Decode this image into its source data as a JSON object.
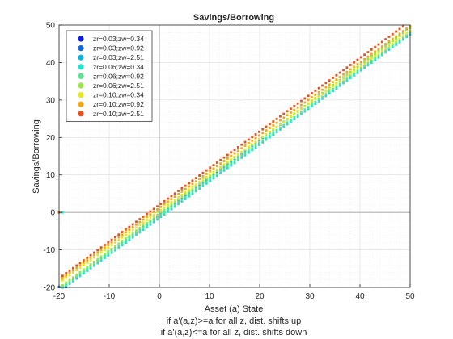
{
  "chart_data": {
    "type": "scatter",
    "title": "Savings/Borrowing",
    "xlabel": "Asset (a) State",
    "ylabel": "Savings/Borrowing",
    "notes": [
      "if a'(a,z)>=a for all z, dist. shifts up",
      "if a'(a,z)<=a for all z, dist. shifts down"
    ],
    "xlim": [
      -20,
      50
    ],
    "ylim": [
      -20,
      50
    ],
    "xticks": [
      "-20",
      "-10",
      "0",
      "10",
      "20",
      "30",
      "40",
      "50"
    ],
    "yticks": [
      "-20",
      "-10",
      "0",
      "10",
      "20",
      "30",
      "40",
      "50"
    ],
    "grid": true,
    "minor_grid": true,
    "reference_lines": {
      "x": 0,
      "y": 0
    },
    "legend_position": "top-left",
    "series": [
      {
        "name": "zr=0.03;zw=0.34",
        "color": "#0a1ee6",
        "x_start": -20,
        "x_end": -18.3,
        "x_pivot": -18.3,
        "slope": 1.0,
        "offset": -1.2,
        "y_floor": -19.9
      },
      {
        "name": "zr=0.03;zw=0.92",
        "color": "#0a64e6",
        "x_start": -20,
        "x_end": -18.9,
        "x_pivot": -18.9,
        "slope": 1.0,
        "offset": -1.0,
        "y_floor": -19.9
      },
      {
        "name": "zr=0.03;zw=2.51",
        "color": "#0ab4e6",
        "x_start": -20,
        "x_end": 50,
        "x_pivot": -19.5,
        "slope": 1.0,
        "offset": -0.7,
        "y_floor": 0
      },
      {
        "name": "zr=0.06;zw=0.34",
        "color": "#19e6d2",
        "x_start": -20,
        "x_end": 50,
        "x_pivot": -19.2,
        "slope": 0.98,
        "offset": -1.5,
        "y_floor": 0
      },
      {
        "name": "zr=0.06;zw=0.92",
        "color": "#55e691",
        "x_start": -20,
        "x_end": 50,
        "x_pivot": -19.5,
        "slope": 0.98,
        "offset": -1.0,
        "y_floor": 0
      },
      {
        "name": "zr=0.06;zw=2.51",
        "color": "#9be641",
        "x_start": -20,
        "x_end": 50,
        "x_pivot": -19.8,
        "slope": 0.99,
        "offset": -0.3,
        "y_floor": 0
      },
      {
        "name": "zr=0.10;zw=0.34",
        "color": "#e6e619",
        "x_start": -20,
        "x_end": 50,
        "x_pivot": -20,
        "slope": 0.96,
        "offset": 0.4,
        "y_floor": 0
      },
      {
        "name": "zr=0.10;zw=0.92",
        "color": "#f5a50f",
        "x_start": -20,
        "x_end": 50,
        "x_pivot": -20,
        "slope": 0.97,
        "offset": 1.2,
        "y_floor": 0
      },
      {
        "name": "zr=0.10;zw=2.51",
        "color": "#e6501e",
        "x_start": -20,
        "x_end": 50,
        "x_pivot": -20,
        "slope": 0.98,
        "offset": 2.0,
        "y_floor": 0
      }
    ]
  }
}
